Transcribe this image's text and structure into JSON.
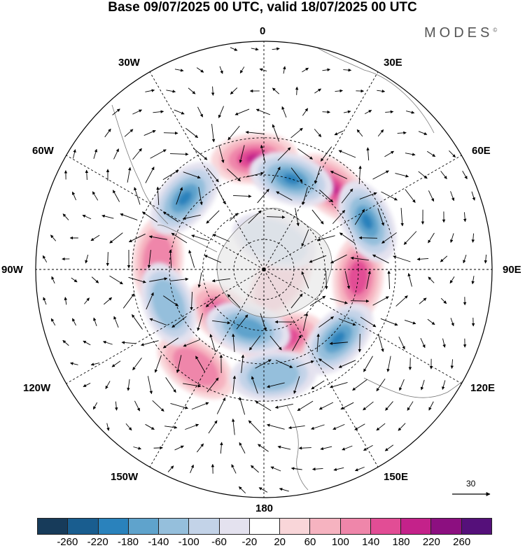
{
  "title": "Base 09/07/2025 00 UTC, valid 18/07/2025 00 UTC",
  "brand": "MODES",
  "brand_mark": "©",
  "longitude_labels": {
    "lon_0": "0",
    "lon_30e": "30E",
    "lon_60e": "60E",
    "lon_90e": "90E",
    "lon_120e": "120E",
    "lon_150e": "150E",
    "lon_180": "180",
    "lon_150w": "150W",
    "lon_120w": "120W",
    "lon_90w": "90W",
    "lon_60w": "60W",
    "lon_30w": "30W"
  },
  "reference_vector": {
    "value": "30"
  },
  "colorbar": {
    "ticks": [
      "-260",
      "-220",
      "-180",
      "-140",
      "-100",
      "-60",
      "-20",
      "20",
      "60",
      "100",
      "140",
      "180",
      "220",
      "260"
    ],
    "colors": [
      "#173b5a",
      "#195d8f",
      "#2a82bc",
      "#5fa3cc",
      "#95bfdc",
      "#c3d3e8",
      "#e4e2ef",
      "#ffffff",
      "#f9d6d9",
      "#f6b3c0",
      "#ef86aa",
      "#e24d95",
      "#c4228a",
      "#8c0f80",
      "#55107a"
    ]
  },
  "map": {
    "projection": "south polar stereographic",
    "highs": [
      {
        "lon": -5,
        "lat": -38,
        "level": 3
      },
      {
        "lon": 40,
        "lat": -40,
        "level": 3
      },
      {
        "lon": 95,
        "lat": -45,
        "level": 2
      },
      {
        "lon": -85,
        "lat": -40,
        "level": 1
      },
      {
        "lon": -145,
        "lat": -35,
        "level": 1
      },
      {
        "lon": 165,
        "lat": -55,
        "level": 2
      },
      {
        "lon": -140,
        "lat": -60,
        "level": 2
      },
      {
        "lon": 125,
        "lat": -80,
        "level": 0
      }
    ],
    "lows": [
      {
        "lon": -48,
        "lat": -40,
        "level": 4
      },
      {
        "lon": 17,
        "lat": -45,
        "level": 4
      },
      {
        "lon": 65,
        "lat": -37,
        "level": 3
      },
      {
        "lon": 133,
        "lat": -42,
        "level": 3
      },
      {
        "lon": -110,
        "lat": -42,
        "level": 1
      },
      {
        "lon": -165,
        "lat": -60,
        "level": 2
      },
      {
        "lon": 175,
        "lat": -40,
        "level": 1
      },
      {
        "lon": 20,
        "lat": -75,
        "level": 0
      }
    ]
  }
}
